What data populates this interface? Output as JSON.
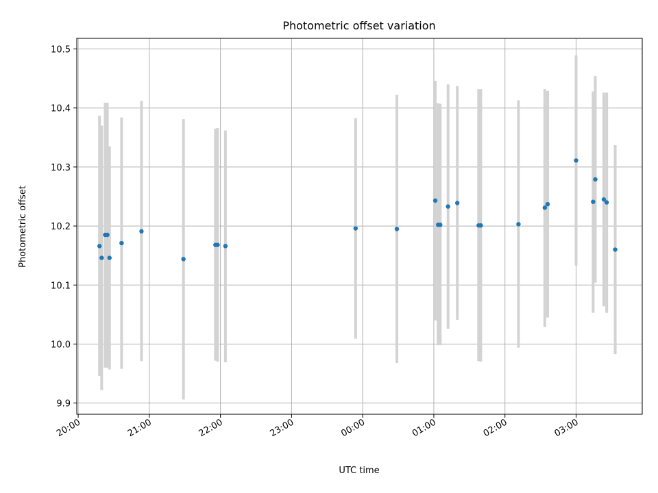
{
  "chart_data": {
    "type": "scatter",
    "title": "Photometric offset variation",
    "xlabel": "UTC time",
    "ylabel": "Photometric offset",
    "x_ticks": [
      "20:00",
      "21:00",
      "22:00",
      "23:00",
      "00:00",
      "01:00",
      "02:00",
      "03:00"
    ],
    "x_tick_hours": [
      0,
      1,
      2,
      3,
      4,
      5,
      6,
      7
    ],
    "y_ticks": [
      "9.9",
      "10.0",
      "10.1",
      "10.2",
      "10.3",
      "10.4",
      "10.5"
    ],
    "y_tick_values": [
      9.9,
      10.0,
      10.1,
      10.2,
      10.3,
      10.4,
      10.5
    ],
    "xlim_hours": [
      -0.02,
      7.93
    ],
    "ylim": [
      9.881,
      10.518
    ],
    "grid": true,
    "point_color": "#1f77b4",
    "error_color": "#d3d3d3",
    "points": [
      {
        "t": 0.3,
        "y": 10.166,
        "lo": 9.946,
        "hi": 10.387
      },
      {
        "t": 0.33,
        "y": 10.146,
        "lo": 9.922,
        "hi": 10.37
      },
      {
        "t": 0.38,
        "y": 10.185,
        "lo": 9.96,
        "hi": 10.409
      },
      {
        "t": 0.41,
        "y": 10.185,
        "lo": 9.96,
        "hi": 10.409
      },
      {
        "t": 0.44,
        "y": 10.146,
        "lo": 9.957,
        "hi": 10.335
      },
      {
        "t": 0.61,
        "y": 10.171,
        "lo": 9.958,
        "hi": 10.384
      },
      {
        "t": 0.89,
        "y": 10.191,
        "lo": 9.971,
        "hi": 10.412
      },
      {
        "t": 1.48,
        "y": 10.144,
        "lo": 9.906,
        "hi": 10.381
      },
      {
        "t": 1.93,
        "y": 10.168,
        "lo": 9.972,
        "hi": 10.365
      },
      {
        "t": 1.96,
        "y": 10.168,
        "lo": 9.97,
        "hi": 10.366
      },
      {
        "t": 2.07,
        "y": 10.166,
        "lo": 9.969,
        "hi": 10.362
      },
      {
        "t": 3.9,
        "y": 10.196,
        "lo": 10.009,
        "hi": 10.383
      },
      {
        "t": 4.48,
        "y": 10.195,
        "lo": 9.968,
        "hi": 10.422
      },
      {
        "t": 5.02,
        "y": 10.243,
        "lo": 10.04,
        "hi": 10.446
      },
      {
        "t": 5.06,
        "y": 10.202,
        "lo": 9.998,
        "hi": 10.408
      },
      {
        "t": 5.09,
        "y": 10.202,
        "lo": 9.998,
        "hi": 10.407
      },
      {
        "t": 5.2,
        "y": 10.233,
        "lo": 10.026,
        "hi": 10.44
      },
      {
        "t": 5.33,
        "y": 10.239,
        "lo": 10.041,
        "hi": 10.437
      },
      {
        "t": 5.63,
        "y": 10.201,
        "lo": 9.971,
        "hi": 10.432
      },
      {
        "t": 5.66,
        "y": 10.201,
        "lo": 9.97,
        "hi": 10.432
      },
      {
        "t": 6.19,
        "y": 10.203,
        "lo": 9.994,
        "hi": 10.413
      },
      {
        "t": 6.56,
        "y": 10.231,
        "lo": 10.029,
        "hi": 10.432
      },
      {
        "t": 6.6,
        "y": 10.237,
        "lo": 10.045,
        "hi": 10.429
      },
      {
        "t": 7.0,
        "y": 10.311,
        "lo": 10.133,
        "hi": 10.489
      },
      {
        "t": 7.24,
        "y": 10.241,
        "lo": 10.053,
        "hi": 10.428
      },
      {
        "t": 7.27,
        "y": 10.279,
        "lo": 10.104,
        "hi": 10.454
      },
      {
        "t": 7.39,
        "y": 10.245,
        "lo": 10.064,
        "hi": 10.426
      },
      {
        "t": 7.43,
        "y": 10.24,
        "lo": 10.053,
        "hi": 10.426
      },
      {
        "t": 7.55,
        "y": 10.16,
        "lo": 9.983,
        "hi": 10.337
      }
    ]
  }
}
